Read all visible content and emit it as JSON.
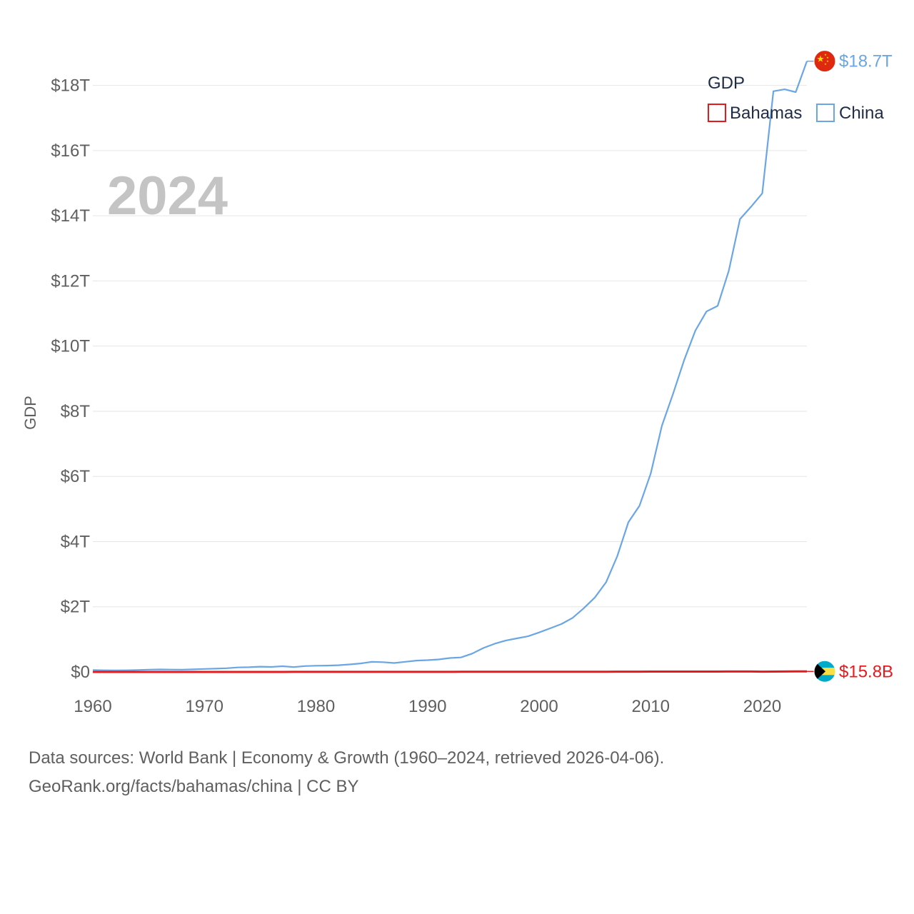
{
  "chart_data": {
    "type": "line",
    "title": "",
    "year_label": "2024",
    "ylabel": "GDP",
    "xlabel": "",
    "xlim": [
      1960,
      2024
    ],
    "ylim": [
      0,
      19000000000000
    ],
    "x_ticks": [
      1960,
      1970,
      1980,
      1990,
      2000,
      2010,
      2020
    ],
    "x_tick_labels": [
      "1960",
      "1970",
      "1980",
      "1990",
      "2000",
      "2010",
      "2020"
    ],
    "y_ticks": [
      0,
      2000000000000,
      4000000000000,
      6000000000000,
      8000000000000,
      10000000000000,
      12000000000000,
      14000000000000,
      16000000000000,
      18000000000000
    ],
    "y_tick_labels": [
      "$0",
      "$2T",
      "$4T",
      "$6T",
      "$8T",
      "$10T",
      "$12T",
      "$14T",
      "$16T",
      "$18T"
    ],
    "legend": {
      "title": "GDP",
      "placement": "top-right"
    },
    "x": [
      1960,
      1961,
      1962,
      1963,
      1964,
      1965,
      1966,
      1967,
      1968,
      1969,
      1970,
      1971,
      1972,
      1973,
      1974,
      1975,
      1976,
      1977,
      1978,
      1979,
      1980,
      1981,
      1982,
      1983,
      1984,
      1985,
      1986,
      1987,
      1988,
      1989,
      1990,
      1991,
      1992,
      1993,
      1994,
      1995,
      1996,
      1997,
      1998,
      1999,
      2000,
      2001,
      2002,
      2003,
      2004,
      2005,
      2006,
      2007,
      2008,
      2009,
      2010,
      2011,
      2012,
      2013,
      2014,
      2015,
      2016,
      2017,
      2018,
      2019,
      2020,
      2021,
      2022,
      2023,
      2024
    ],
    "series": [
      {
        "name": "China",
        "color": "#6aa6e3",
        "end_label": "$18.7T",
        "flag": "china",
        "values": [
          60000000000.0,
          50000000000.0,
          47000000000.0,
          51000000000.0,
          60000000000.0,
          70000000000.0,
          76000000000.0,
          73000000000.0,
          70000000000.0,
          79000000000.0,
          93000000000.0,
          100000000000.0,
          114000000000.0,
          139000000000.0,
          144000000000.0,
          163000000000.0,
          154000000000.0,
          175000000000.0,
          150000000000.0,
          179000000000.0,
          191000000000.0,
          196000000000.0,
          205000000000.0,
          231000000000.0,
          260000000000.0,
          310000000000.0,
          301000000000.0,
          273000000000.0,
          312000000000.0,
          348000000000.0,
          361000000000.0,
          383000000000.0,
          427000000000.0,
          445000000000.0,
          564000000000.0,
          734000000000.0,
          864000000000.0,
          962000000000.0,
          1029000000000.0,
          1094000000000.0,
          1211000000000.0,
          1339000000000.0,
          1471000000000.0,
          1660000000000.0,
          1955000000000.0,
          2286000000000.0,
          2752000000000.0,
          3550000000000.0,
          4594000000000.0,
          5102000000000.0,
          6087000000000.0,
          7552000000000.0,
          8532000000000.0,
          9570000000000.0,
          10476000000000.0,
          11062000000000.0,
          11233000000000.0,
          12310000000000.0,
          13895000000000.0,
          14280000000000.0,
          14688000000000.0,
          17820000000000.0,
          17881000000000.0,
          17795000000000.0,
          18744000000000.0
        ]
      },
      {
        "name": "Bahamas",
        "color": "#e8191c",
        "end_label": "$15.8B",
        "flag": "bahamas",
        "values": [
          200000000.0,
          200000000.0,
          250000000.0,
          280000000.0,
          300000000.0,
          350000000.0,
          400000000.0,
          450000000.0,
          500000000.0,
          550000000.0,
          600000000.0,
          650000000.0,
          700000000.0,
          750000000.0,
          800000000.0,
          850000000.0,
          900000000.0,
          1000000000.0,
          1100000000.0,
          1200000000.0,
          1300000000.0,
          1400000000.0,
          1500000000.0,
          1600000000.0,
          1700000000.0,
          1800000000.0,
          2000000000.0,
          2200000000.0,
          2400000000.0,
          2600000000.0,
          3100000000.0,
          3200000000.0,
          3200000000.0,
          3300000000.0,
          3500000000.0,
          3600000000.0,
          3800000000.0,
          4100000000.0,
          4500000000.0,
          5000000000.0,
          5400000000.0,
          5700000000.0,
          5900000000.0,
          6200000000.0,
          6600000000.0,
          7100000000.0,
          7500000000.0,
          8600000000.0,
          8800000000.0,
          8800000000.0,
          10100000000.0,
          10100000000.0,
          10400000000.0,
          10800000000.0,
          11300000000.0,
          11900000000.0,
          11900000000.0,
          12200000000.0,
          12500000000.0,
          12800000000.0,
          9700000000.0,
          11200000000.0,
          12900000000.0,
          14300000000.0,
          15800000000.0
        ]
      }
    ]
  },
  "source": {
    "line1": "Data sources: World Bank | Economy & Growth (1960–2024, retrieved 2026-04-06).",
    "line2": "GeoRank.org/facts/bahamas/china | CC BY"
  }
}
